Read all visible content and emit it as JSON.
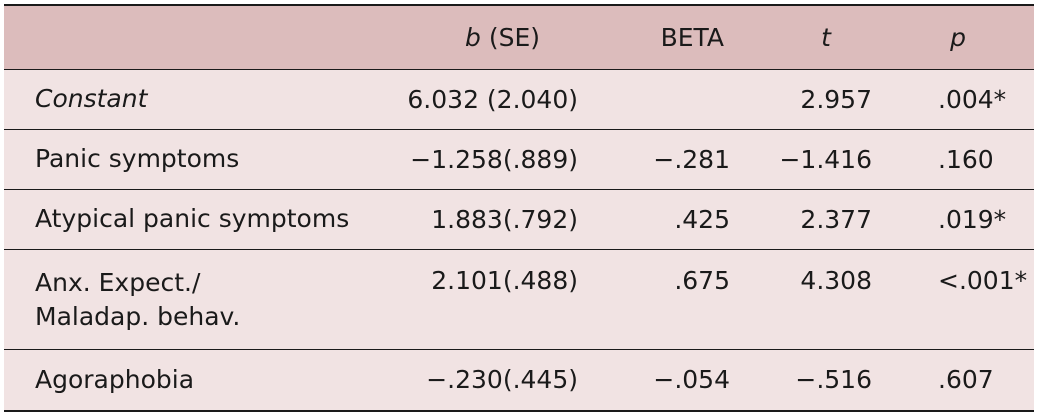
{
  "header": {
    "b_prefix": "b",
    "b_suffix": " (SE)",
    "beta": "BETA",
    "t": "t",
    "p": "p"
  },
  "rows": [
    {
      "label": "Constant",
      "label_line2": "",
      "b": "6.032 (2.040)",
      "beta": "",
      "t": "2.957",
      "p": ".004*"
    },
    {
      "label": "Panic symptoms",
      "label_line2": "",
      "b": "−1.258(.889)",
      "beta": "−.281",
      "t": "−1.416",
      "p": ".160"
    },
    {
      "label": "Atypical panic symptoms",
      "label_line2": "",
      "b": "1.883(.792)",
      "beta": ".425",
      "t": "2.377",
      "p": ".019*"
    },
    {
      "label": "Anx. Expect./",
      "label_line2": "Maladap. behav.",
      "b": "2.101(.488)",
      "beta": ".675",
      "t": "4.308",
      "p": "<.001*"
    },
    {
      "label": "Agoraphobia",
      "label_line2": "",
      "b": "−.230(.445)",
      "beta": "−.054",
      "t": "−.516",
      "p": ".607"
    }
  ],
  "colors": {
    "header_bg": "#dcbcbc",
    "row_bg": "#f1e3e3",
    "rule": "#1a1a1a"
  }
}
